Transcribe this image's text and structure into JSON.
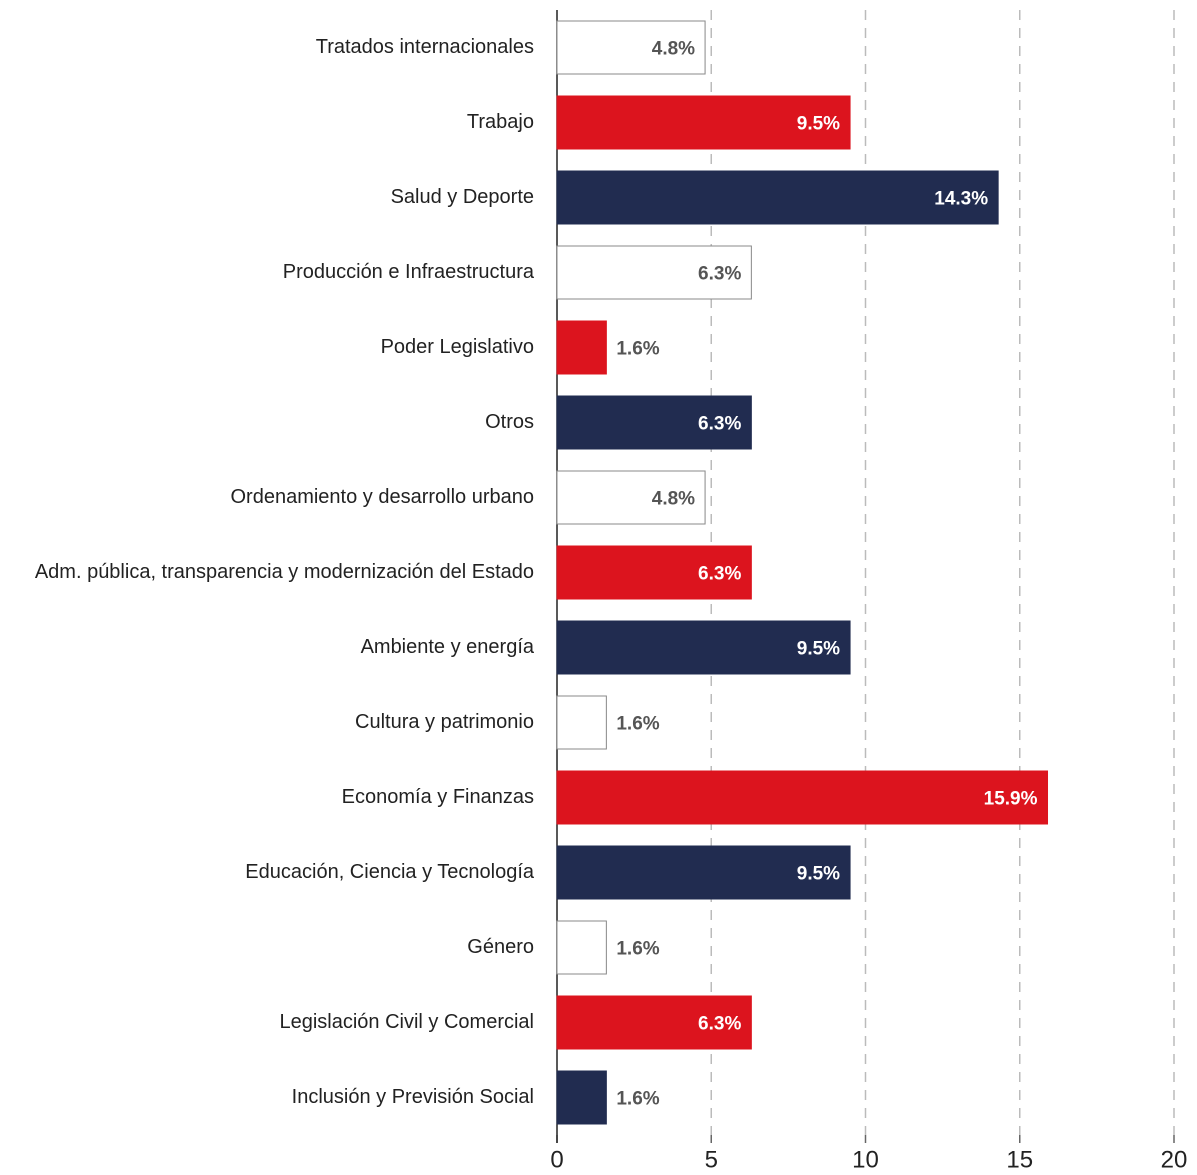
{
  "chart_data": {
    "type": "barh",
    "categories": [
      "Tratados internacionales",
      "Trabajo",
      "Salud y Deporte",
      "Producción e Infraestructura",
      "Poder Legislativo",
      "Otros",
      "Ordenamiento y desarrollo urbano",
      "Adm. pública, transparencia y modernización del Estado",
      "Ambiente y energía",
      "Cultura y patrimonio",
      "Economía y Finanzas",
      "Educación, Ciencia y Tecnología",
      "Género",
      "Legislación Civil y Comercial",
      "Inclusión y Previsión Social"
    ],
    "values": [
      4.8,
      9.5,
      14.3,
      6.3,
      1.6,
      6.3,
      4.8,
      6.3,
      9.5,
      1.6,
      15.9,
      9.5,
      1.6,
      6.3,
      1.6
    ],
    "value_labels": [
      "4.8%",
      "9.5%",
      "14.3%",
      "6.3%",
      "1.6%",
      "6.3%",
      "4.8%",
      "6.3%",
      "9.5%",
      "1.6%",
      "15.9%",
      "9.5%",
      "1.6%",
      "6.3%",
      "1.6%"
    ],
    "colors": [
      "#ffffff",
      "#dc141e",
      "#212c50",
      "#ffffff",
      "#dc141e",
      "#212c50",
      "#ffffff",
      "#dc141e",
      "#212c50",
      "#ffffff",
      "#dc141e",
      "#212c50",
      "#ffffff",
      "#dc141e",
      "#212c50"
    ],
    "xlim": [
      0,
      20
    ],
    "xticks": [
      0,
      5,
      10,
      15,
      20
    ],
    "grid": true
  }
}
